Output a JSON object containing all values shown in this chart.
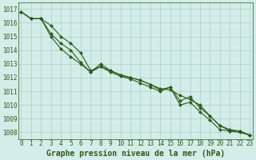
{
  "title": "Graphe pression niveau de la mer (hPa)",
  "x_values": [
    0,
    1,
    2,
    3,
    4,
    5,
    6,
    7,
    8,
    9,
    10,
    11,
    12,
    13,
    14,
    15,
    16,
    17,
    18,
    19,
    20,
    21,
    22,
    23
  ],
  "series": [
    [
      1016.8,
      1016.3,
      1016.3,
      1015.8,
      1015.0,
      1014.5,
      1013.8,
      1012.5,
      1012.8,
      1012.5,
      1012.2,
      1012.0,
      1011.8,
      1011.5,
      1011.2,
      1011.1,
      1010.7,
      1010.4,
      1010.0,
      1009.2,
      1008.5,
      1008.2,
      1008.1,
      1007.8
    ],
    [
      1016.8,
      1016.3,
      1016.3,
      1015.2,
      1014.5,
      1014.0,
      1013.1,
      1012.4,
      1013.0,
      1012.5,
      1012.2,
      1012.0,
      1011.8,
      1011.5,
      1011.1,
      1011.3,
      1010.3,
      1010.6,
      1009.8,
      1009.2,
      1008.5,
      1008.1,
      1008.1,
      1007.8
    ],
    [
      1016.8,
      1016.3,
      1016.3,
      1015.0,
      1014.1,
      1013.5,
      1013.0,
      1012.4,
      1012.8,
      1012.4,
      1012.1,
      1011.9,
      1011.6,
      1011.3,
      1011.0,
      1011.3,
      1010.0,
      1010.2,
      1009.5,
      1008.9,
      1008.2,
      1008.1,
      1008.0,
      1007.8
    ]
  ],
  "ylim": [
    1007.5,
    1017.5
  ],
  "yticks": [
    1008,
    1009,
    1010,
    1011,
    1012,
    1013,
    1014,
    1015,
    1016,
    1017
  ],
  "xticks": [
    0,
    1,
    2,
    3,
    4,
    5,
    6,
    7,
    8,
    9,
    10,
    11,
    12,
    13,
    14,
    15,
    16,
    17,
    18,
    19,
    20,
    21,
    22,
    23
  ],
  "line_color": "#2d5a1b",
  "marker_color": "#2d5a1b",
  "bg_color": "#d4ede8",
  "grid_major_color": "#a8cfc8",
  "grid_minor_color": "#bcddd8",
  "title_fontsize": 7.0,
  "tick_fontsize": 5.5,
  "line_width": 0.8,
  "marker_size": 2.0
}
